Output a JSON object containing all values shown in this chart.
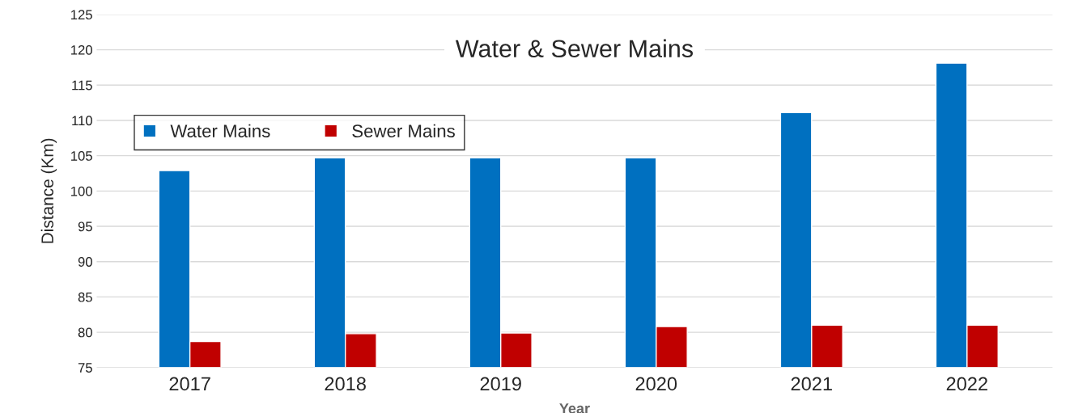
{
  "chart_data": {
    "type": "bar",
    "title": "Water & Sewer Mains",
    "xlabel": "Year",
    "ylabel": "Distance (Km)",
    "categories": [
      "2017",
      "2018",
      "2019",
      "2020",
      "2021",
      "2022"
    ],
    "series": [
      {
        "name": "Water Mains",
        "color": "#0070c0",
        "values": [
          102.9,
          104.7,
          104.7,
          104.7,
          111.1,
          118.1
        ]
      },
      {
        "name": "Sewer Mains",
        "color": "#c00000",
        "values": [
          78.7,
          79.8,
          79.9,
          80.8,
          81.0,
          81.0
        ]
      }
    ],
    "ylim": [
      75,
      125
    ],
    "yticks": [
      75,
      80,
      85,
      90,
      95,
      100,
      105,
      110,
      115,
      120,
      125
    ],
    "grid": "y",
    "legend": "top left"
  }
}
